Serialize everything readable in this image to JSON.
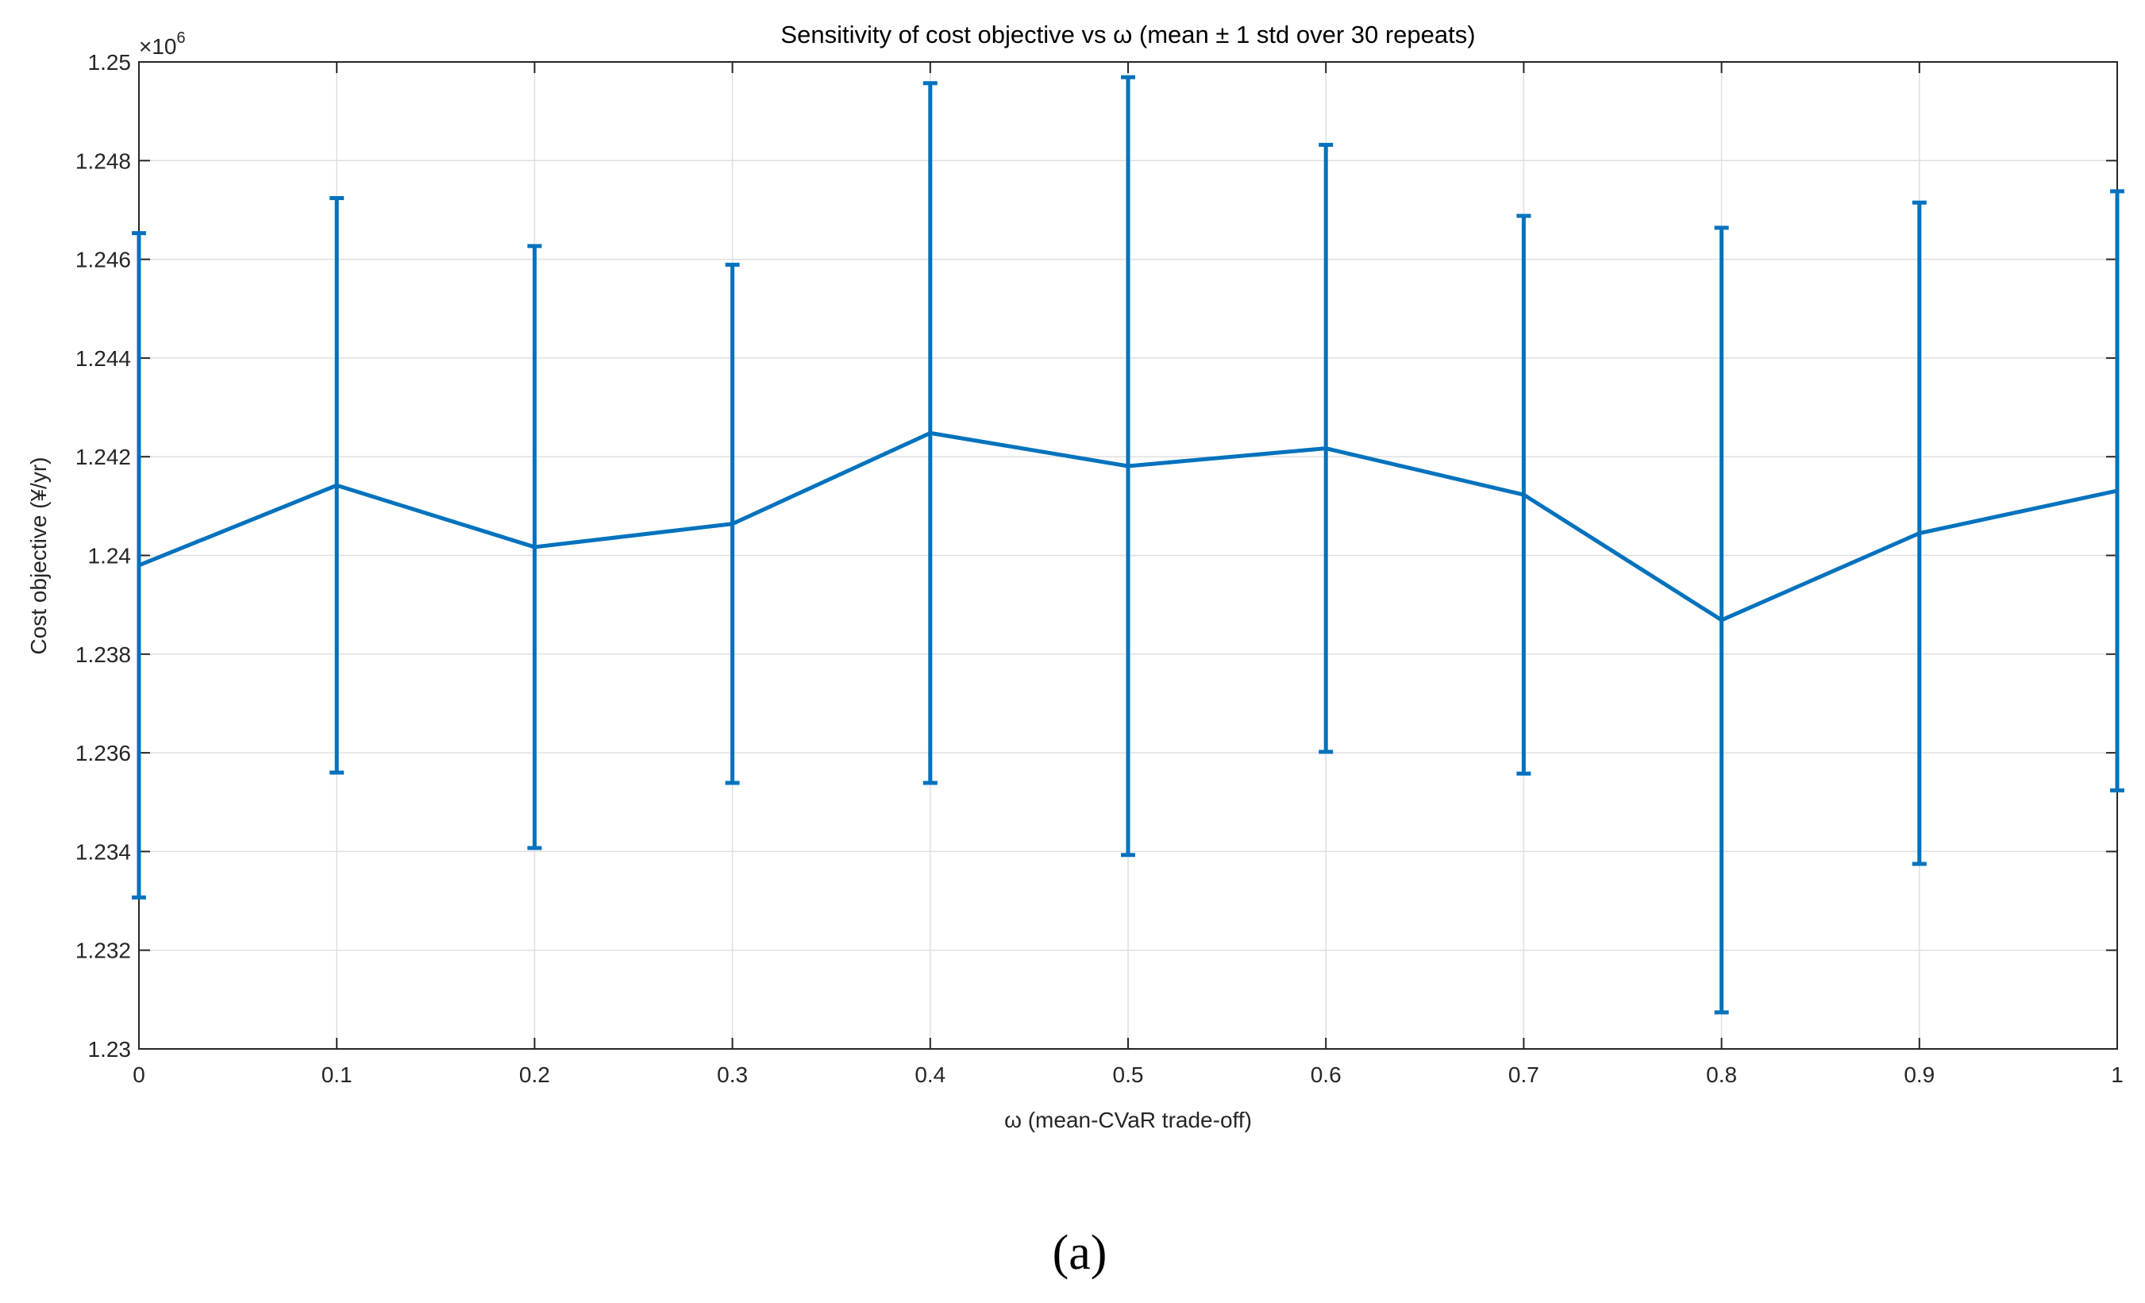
{
  "chart_data": {
    "type": "errorbar",
    "title": "Sensitivity of cost objective vs ω (mean ± 1 std over 30 repeats)",
    "xlabel": "ω (mean-CVaR trade-off)",
    "ylabel": "Cost objective (¥/yr)",
    "y_exponent_label": {
      "base": "×10",
      "exponent": "6"
    },
    "caption": "(a)",
    "x": [
      0,
      0.1,
      0.2,
      0.3,
      0.4,
      0.5,
      0.6,
      0.7,
      0.8,
      0.9,
      1
    ],
    "series": [
      {
        "color": "#0072BD",
        "values": [
          1239800,
          1241420,
          1240170,
          1240640,
          1242480,
          1241810,
          1242170,
          1241230,
          1238690,
          1240450,
          1241310
        ],
        "errors": [
          6730,
          5820,
          6100,
          5250,
          7090,
          7880,
          6150,
          5650,
          7950,
          6700,
          6070
        ]
      }
    ],
    "xlim": [
      0,
      1
    ],
    "xticks": [
      0,
      0.1,
      0.2,
      0.3,
      0.4,
      0.5,
      0.6,
      0.7,
      0.8,
      0.9,
      1
    ],
    "ylim": [
      1230000,
      1250000
    ],
    "yticks": [
      {
        "value": 1230000,
        "label": "1.23"
      },
      {
        "value": 1232000,
        "label": "1.232"
      },
      {
        "value": 1234000,
        "label": "1.234"
      },
      {
        "value": 1236000,
        "label": "1.236"
      },
      {
        "value": 1238000,
        "label": "1.238"
      },
      {
        "value": 1240000,
        "label": "1.24"
      },
      {
        "value": 1242000,
        "label": "1.242"
      },
      {
        "value": 1244000,
        "label": "1.244"
      },
      {
        "value": 1246000,
        "label": "1.246"
      },
      {
        "value": 1248000,
        "label": "1.248"
      },
      {
        "value": 1250000,
        "label": "1.25"
      }
    ],
    "grid": true
  }
}
